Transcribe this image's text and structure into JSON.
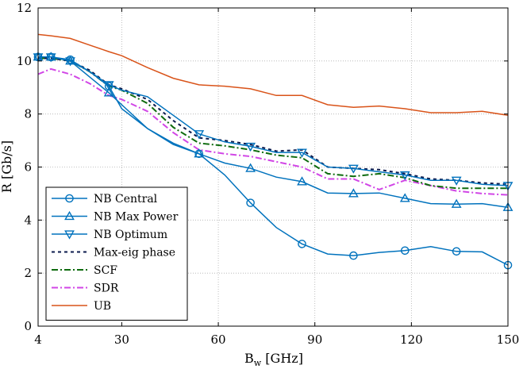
{
  "chart_data": {
    "type": "line",
    "title": "",
    "xlabel": "B",
    "xlabel_sub": "w",
    "xlabel_unit": " [GHz]",
    "ylabel": "R [Gb/s]",
    "xlim": [
      4,
      150
    ],
    "ylim": [
      0,
      12
    ],
    "xticks": [
      4,
      30,
      60,
      90,
      120,
      150
    ],
    "yticks": [
      0,
      2,
      4,
      6,
      8,
      10,
      12
    ],
    "grid": true,
    "legend_position": "lower-left",
    "x": [
      4,
      8,
      14,
      20,
      26,
      30,
      38,
      46,
      54,
      62,
      70,
      78,
      86,
      94,
      102,
      110,
      118,
      126,
      134,
      142,
      150
    ],
    "series": [
      {
        "name": "NB Central",
        "color": "#0072BD",
        "dash": "",
        "marker": "circle",
        "marker_every": [
          0,
          1,
          2,
          4,
          8,
          10,
          12,
          14,
          16,
          18,
          20
        ],
        "values": [
          10.15,
          10.15,
          10.05,
          9.6,
          9.05,
          8.2,
          7.45,
          6.9,
          6.5,
          5.7,
          4.65,
          3.72,
          3.1,
          2.72,
          2.66,
          2.78,
          2.85,
          3.0,
          2.82,
          2.8,
          2.3
        ]
      },
      {
        "name": "NB Max Power",
        "color": "#0072BD",
        "dash": "",
        "marker": "triangle-up",
        "marker_every": [
          0,
          1,
          2,
          4,
          8,
          10,
          12,
          14,
          16,
          18,
          20
        ],
        "values": [
          10.15,
          10.15,
          10.0,
          9.4,
          8.8,
          8.35,
          7.45,
          6.85,
          6.5,
          6.15,
          5.95,
          5.62,
          5.45,
          5.02,
          5.0,
          5.02,
          4.82,
          4.62,
          4.6,
          4.62,
          4.48
        ]
      },
      {
        "name": "NB Optimum",
        "color": "#0072BD",
        "dash": "",
        "marker": "triangle-down",
        "marker_every": [
          0,
          1,
          2,
          4,
          8,
          10,
          12,
          14,
          16,
          18,
          20
        ],
        "values": [
          10.15,
          10.15,
          10.0,
          9.6,
          9.1,
          8.9,
          8.65,
          7.95,
          7.25,
          6.95,
          6.78,
          6.55,
          6.55,
          6.0,
          5.95,
          5.82,
          5.7,
          5.5,
          5.5,
          5.35,
          5.3
        ]
      },
      {
        "name": "Max-eig phase",
        "color": "#0b1a4d",
        "dash": "4,4",
        "marker": "none",
        "marker_every": [],
        "values": [
          10.1,
          10.1,
          10.0,
          9.65,
          9.1,
          8.95,
          8.55,
          7.75,
          7.1,
          7.0,
          6.85,
          6.6,
          6.65,
          6.0,
          5.95,
          5.9,
          5.75,
          5.55,
          5.5,
          5.4,
          5.35
        ]
      },
      {
        "name": "SCF",
        "color": "#0e6b0e",
        "dash": "8,3,2,3",
        "marker": "none",
        "marker_every": [],
        "values": [
          10.1,
          10.1,
          10.0,
          9.6,
          9.05,
          8.9,
          8.4,
          7.5,
          6.9,
          6.8,
          6.65,
          6.45,
          6.35,
          5.75,
          5.65,
          5.75,
          5.6,
          5.3,
          5.2,
          5.2,
          5.2
        ]
      },
      {
        "name": "SDR",
        "color": "#d146e6",
        "dash": "8,3,2,3",
        "marker": "none",
        "marker_every": [],
        "values": [
          9.5,
          9.7,
          9.5,
          9.15,
          8.7,
          8.55,
          8.1,
          7.3,
          6.65,
          6.5,
          6.4,
          6.2,
          6.0,
          5.55,
          5.55,
          5.15,
          5.5,
          5.3,
          5.1,
          5.0,
          4.95
        ]
      },
      {
        "name": "UB",
        "color": "#D95319",
        "dash": "",
        "marker": "none",
        "marker_every": [],
        "values": [
          11.0,
          10.95,
          10.85,
          10.6,
          10.35,
          10.2,
          9.75,
          9.35,
          9.1,
          9.05,
          8.95,
          8.7,
          8.7,
          8.35,
          8.25,
          8.3,
          8.2,
          8.05,
          8.05,
          8.1,
          7.95
        ]
      }
    ]
  }
}
